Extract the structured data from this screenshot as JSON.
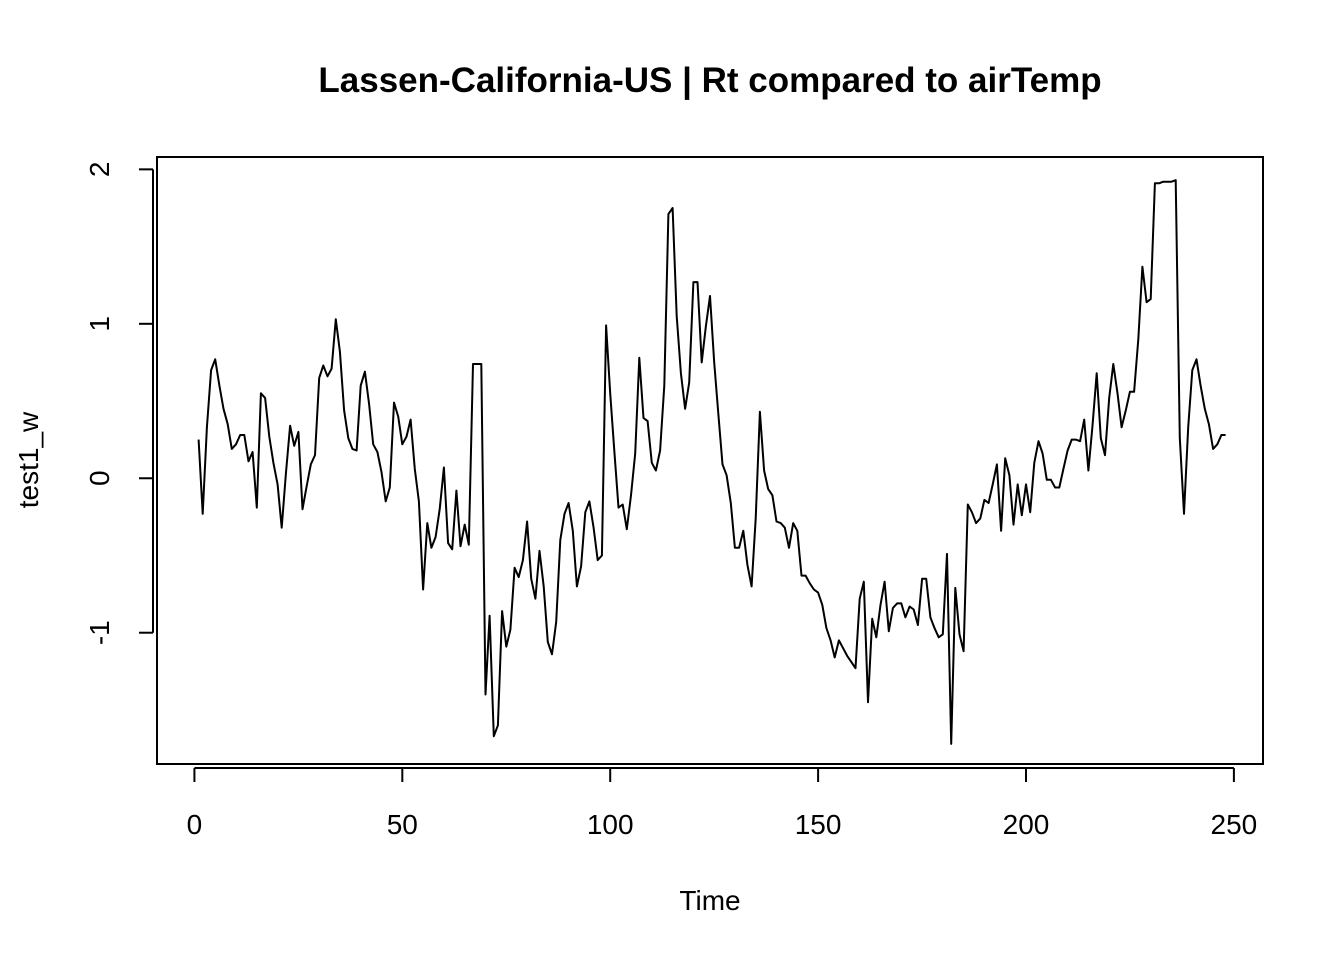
{
  "chart_data": {
    "type": "line",
    "title": "Lassen-California-US | Rt compared to airTemp",
    "xlabel": "Time",
    "ylabel": "test1_w",
    "xlim": [
      -9,
      257
    ],
    "ylim": [
      -1.85,
      2.08
    ],
    "xticks": [
      0,
      50,
      100,
      150,
      200,
      250
    ],
    "yticks": [
      -1,
      0,
      1,
      2
    ],
    "grid": false,
    "legend": "none",
    "line_color": "#000000",
    "series": [
      {
        "x": [
          1,
          2,
          3,
          4,
          5,
          6,
          7,
          8,
          9,
          10,
          11,
          12,
          13,
          14,
          15,
          16,
          17,
          18,
          19,
          20,
          21,
          22,
          23,
          24,
          25,
          26,
          27,
          28,
          29,
          30,
          31,
          32,
          33,
          34,
          35,
          36,
          37,
          38,
          39,
          40,
          41,
          42,
          43,
          44,
          45,
          46,
          47,
          48,
          49,
          50,
          51,
          52,
          53,
          54,
          55,
          56,
          57,
          58,
          59,
          60,
          61,
          62,
          63,
          64,
          65,
          66,
          67,
          68,
          69,
          70,
          71,
          72,
          73,
          74,
          75,
          76,
          77,
          78,
          79,
          80,
          81,
          82,
          83,
          84,
          85,
          86,
          87,
          88,
          89,
          90,
          91,
          92,
          93,
          94,
          95,
          96,
          97,
          98,
          99,
          100,
          101,
          102,
          103,
          104,
          105,
          106,
          107,
          108,
          109,
          110,
          111,
          112,
          113,
          114,
          115,
          116,
          117,
          118,
          119,
          120,
          121,
          122,
          123,
          124,
          125,
          126,
          127,
          128,
          129,
          130,
          131,
          132,
          133,
          134,
          135,
          136,
          137,
          138,
          139,
          140,
          141,
          142,
          143,
          144,
          145,
          146,
          147,
          148,
          149,
          150,
          151,
          152,
          153,
          154,
          155,
          156,
          157,
          158,
          159,
          160,
          161,
          162,
          163,
          164,
          165,
          166,
          167,
          168,
          169,
          170,
          171,
          172,
          173,
          174,
          175,
          176,
          177,
          178,
          179,
          180,
          181,
          182,
          183,
          184,
          185,
          186,
          187,
          188,
          189,
          190,
          191,
          192,
          193,
          194,
          195,
          196,
          197,
          198,
          199,
          200,
          201,
          202,
          203,
          204,
          205,
          206,
          207,
          208,
          209,
          210,
          211,
          212,
          213,
          214,
          215,
          216,
          217,
          218,
          219,
          220,
          221,
          222,
          223,
          224,
          225,
          226,
          227,
          228,
          229,
          230,
          231,
          232,
          233,
          234,
          235,
          236,
          237,
          238,
          239,
          240,
          241,
          242,
          243,
          244,
          245,
          246,
          247,
          248
        ],
        "values": [
          0.25,
          -0.23,
          0.33,
          0.7,
          0.77,
          0.6,
          0.45,
          0.35,
          0.19,
          0.22,
          0.28,
          0.28,
          0.11,
          0.17,
          -0.19,
          0.55,
          0.52,
          0.27,
          0.1,
          -0.04,
          -0.32,
          0.03,
          0.34,
          0.21,
          0.3,
          -0.2,
          -0.05,
          0.09,
          0.15,
          0.65,
          0.73,
          0.66,
          0.71,
          1.03,
          0.82,
          0.44,
          0.26,
          0.19,
          0.18,
          0.6,
          0.69,
          0.48,
          0.22,
          0.17,
          0.04,
          -0.15,
          -0.06,
          0.49,
          0.4,
          0.22,
          0.27,
          0.38,
          0.06,
          -0.15,
          -0.72,
          -0.29,
          -0.45,
          -0.38,
          -0.2,
          0.07,
          -0.42,
          -0.46,
          -0.08,
          -0.44,
          -0.3,
          -0.43,
          0.74,
          0.74,
          0.74,
          -1.4,
          -0.89,
          -1.67,
          -1.6,
          -0.86,
          -1.09,
          -0.98,
          -0.58,
          -0.64,
          -0.53,
          -0.28,
          -0.65,
          -0.78,
          -0.47,
          -0.7,
          -1.06,
          -1.14,
          -0.93,
          -0.4,
          -0.23,
          -0.16,
          -0.34,
          -0.7,
          -0.57,
          -0.22,
          -0.15,
          -0.32,
          -0.53,
          -0.5,
          0.99,
          0.55,
          0.17,
          -0.19,
          -0.17,
          -0.33,
          -0.11,
          0.16,
          0.78,
          0.39,
          0.37,
          0.1,
          0.05,
          0.18,
          0.6,
          1.71,
          1.75,
          1.05,
          0.68,
          0.45,
          0.62,
          1.27,
          1.27,
          0.75,
          0.98,
          1.18,
          0.75,
          0.42,
          0.09,
          0.02,
          -0.16,
          -0.45,
          -0.45,
          -0.34,
          -0.56,
          -0.7,
          -0.26,
          0.43,
          0.05,
          -0.07,
          -0.11,
          -0.28,
          -0.29,
          -0.32,
          -0.45,
          -0.29,
          -0.34,
          -0.63,
          -0.63,
          -0.68,
          -0.72,
          -0.74,
          -0.82,
          -0.97,
          -1.05,
          -1.16,
          -1.05,
          -1.1,
          -1.15,
          -1.19,
          -1.23,
          -0.78,
          -0.67,
          -1.45,
          -0.91,
          -1.03,
          -0.82,
          -0.67,
          -0.99,
          -0.84,
          -0.81,
          -0.81,
          -0.9,
          -0.83,
          -0.85,
          -0.95,
          -0.65,
          -0.65,
          -0.9,
          -0.97,
          -1.03,
          -1.01,
          -0.49,
          -1.72,
          -0.71,
          -1.01,
          -1.12,
          -0.17,
          -0.22,
          -0.29,
          -0.26,
          -0.14,
          -0.16,
          -0.04,
          0.09,
          -0.34,
          0.13,
          0.02,
          -0.3,
          -0.04,
          -0.24,
          -0.04,
          -0.22,
          0.1,
          0.24,
          0.16,
          -0.01,
          -0.01,
          -0.06,
          -0.06,
          0.06,
          0.18,
          0.25,
          0.25,
          0.24,
          0.38,
          0.05,
          0.34,
          0.68,
          0.26,
          0.15,
          0.52,
          0.74,
          0.55,
          0.33,
          0.44,
          0.56,
          0.56,
          0.9,
          1.37,
          1.14,
          1.16,
          1.91,
          1.91,
          1.92,
          1.92,
          1.92,
          1.93,
          0.26,
          -0.23,
          0.33,
          0.7,
          0.77,
          0.6,
          0.45,
          0.35,
          0.19,
          0.22,
          0.28,
          0.28
        ]
      }
    ]
  }
}
